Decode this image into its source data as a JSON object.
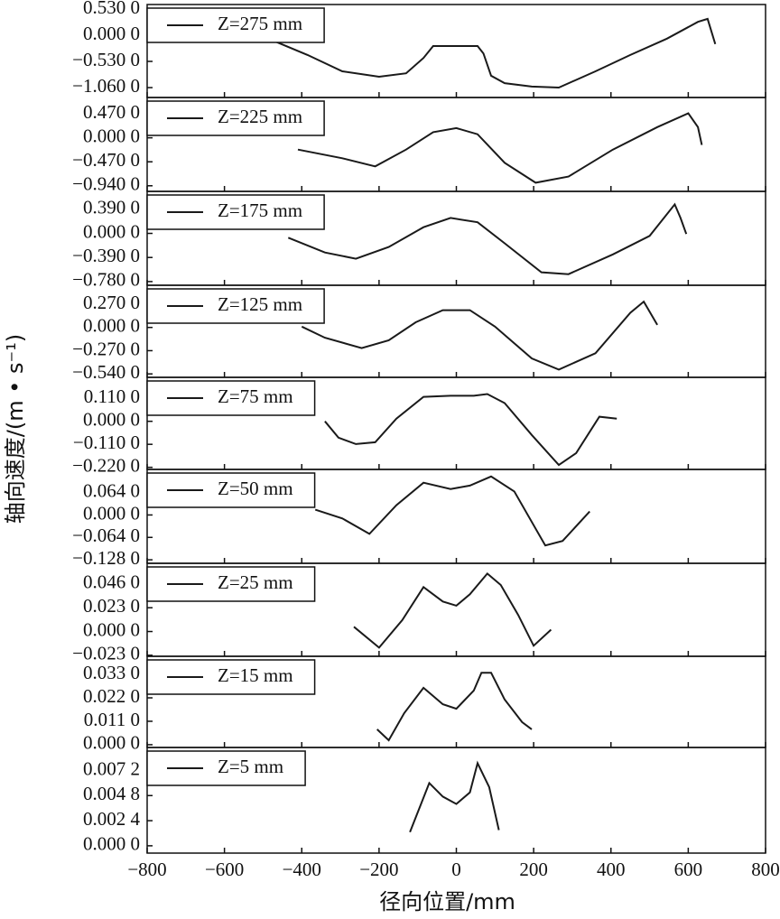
{
  "chart_data": [
    {
      "type": "line",
      "legend": "upper left",
      "x": [
        -480,
        -385,
        -295,
        -200,
        -130,
        -85,
        -60,
        55,
        70,
        90,
        125,
        195,
        265,
        360,
        450,
        545,
        625,
        650,
        670
      ],
      "series": [
        {
          "name": "Z=275 mm",
          "color": "#1a1a1a",
          "values": [
            -0.09,
            -0.4,
            -0.73,
            -0.84,
            -0.77,
            -0.46,
            -0.22,
            -0.22,
            -0.37,
            -0.82,
            -0.97,
            -1.04,
            -1.06,
            -0.73,
            -0.4,
            -0.07,
            0.27,
            0.33,
            -0.18
          ]
        }
      ],
      "xlim": [
        -800,
        800
      ],
      "xticks": [
        -800,
        -600,
        -400,
        -200,
        0,
        200,
        400,
        600,
        800
      ],
      "ylim": [
        -1.26,
        0.62
      ],
      "yticks": [
        {
          "value": -1.06,
          "label": "−1.060 0"
        },
        {
          "value": -0.53,
          "label": "−0.530 0"
        },
        {
          "value": 0,
          "label": "0.000 0"
        },
        {
          "value": 0.53,
          "label": "0.530 0"
        }
      ]
    },
    {
      "type": "line",
      "legend": "upper left",
      "x": [
        -410,
        -295,
        -210,
        -130,
        -60,
        0,
        55,
        125,
        205,
        290,
        405,
        520,
        600,
        625,
        635
      ],
      "series": [
        {
          "name": "Z=225 mm",
          "color": "#1a1a1a",
          "values": [
            -0.23,
            -0.4,
            -0.56,
            -0.23,
            0.11,
            0.19,
            0.07,
            -0.49,
            -0.88,
            -0.76,
            -0.23,
            0.21,
            0.48,
            0.21,
            -0.14
          ]
        }
      ],
      "xlim": [
        -800,
        800
      ],
      "xticks": [
        -800,
        -600,
        -400,
        -200,
        0,
        200,
        400,
        600,
        800
      ],
      "ylim": [
        -1.05,
        0.79
      ],
      "yticks": [
        {
          "value": -0.94,
          "label": "−0.940 0"
        },
        {
          "value": -0.47,
          "label": "−0.470 0"
        },
        {
          "value": 0,
          "label": "0.000 0"
        },
        {
          "value": 0.47,
          "label": "0.470 0"
        }
      ]
    },
    {
      "type": "line",
      "legend": "upper left",
      "x": [
        -435,
        -340,
        -260,
        -175,
        -85,
        -15,
        55,
        125,
        220,
        290,
        405,
        500,
        565,
        580,
        595
      ],
      "series": [
        {
          "name": "Z=175 mm",
          "color": "#1a1a1a",
          "values": [
            -0.07,
            -0.31,
            -0.41,
            -0.22,
            0.1,
            0.25,
            0.18,
            -0.16,
            -0.63,
            -0.66,
            -0.34,
            -0.04,
            0.47,
            0.25,
            -0.01
          ]
        }
      ],
      "xlim": [
        -800,
        800
      ],
      "xticks": [
        -800,
        -600,
        -400,
        -200,
        0,
        200,
        400,
        600,
        800
      ],
      "ylim": [
        -0.84,
        0.68
      ],
      "yticks": [
        {
          "value": -0.78,
          "label": "−0.780 0"
        },
        {
          "value": -0.39,
          "label": "−0.390 0"
        },
        {
          "value": 0,
          "label": "0.000 0"
        },
        {
          "value": 0.39,
          "label": "0.390 0"
        }
      ]
    },
    {
      "type": "line",
      "legend": "upper left",
      "x": [
        -400,
        -340,
        -245,
        -175,
        -105,
        -35,
        35,
        100,
        195,
        265,
        360,
        450,
        485,
        520
      ],
      "series": [
        {
          "name": "Z=125 mm",
          "color": "#1a1a1a",
          "values": [
            0.01,
            -0.12,
            -0.24,
            -0.15,
            0.06,
            0.2,
            0.2,
            0.01,
            -0.36,
            -0.49,
            -0.3,
            0.17,
            0.3,
            0.03
          ]
        }
      ],
      "xlim": [
        -800,
        800
      ],
      "xticks": [
        -800,
        -600,
        -400,
        -200,
        0,
        200,
        400,
        600,
        800
      ],
      "ylim": [
        -0.58,
        0.49
      ],
      "yticks": [
        {
          "value": -0.54,
          "label": "−0.540 0"
        },
        {
          "value": -0.27,
          "label": "−0.270 0"
        },
        {
          "value": 0,
          "label": "0.000 0"
        },
        {
          "value": 0.27,
          "label": "0.270 0"
        }
      ]
    },
    {
      "type": "line",
      "legend": "upper left",
      "x": [
        -340,
        -305,
        -260,
        -210,
        -155,
        -85,
        -15,
        45,
        80,
        125,
        195,
        265,
        310,
        370,
        415
      ],
      "series": [
        {
          "name": "Z=75 mm",
          "color": "#1a1a1a",
          "values": [
            0,
            -0.078,
            -0.109,
            -0.1,
            0.013,
            0.117,
            0.122,
            0.122,
            0.13,
            0.087,
            -0.065,
            -0.209,
            -0.152,
            0.022,
            0.013
          ]
        }
      ],
      "xlim": [
        -800,
        800
      ],
      "xticks": [
        -800,
        -600,
        -400,
        -200,
        0,
        200,
        400,
        600,
        800
      ],
      "ylim": [
        -0.23,
        0.21
      ],
      "yticks": [
        {
          "value": -0.22,
          "label": "−0.220 0"
        },
        {
          "value": -0.11,
          "label": "−0.110 0"
        },
        {
          "value": 0,
          "label": "0.000 0"
        },
        {
          "value": 0.11,
          "label": "0.110 0"
        }
      ]
    },
    {
      "type": "line",
      "legend": "upper left",
      "x": [
        -365,
        -295,
        -225,
        -155,
        -85,
        -15,
        35,
        90,
        150,
        230,
        275,
        345
      ],
      "series": [
        {
          "name": "Z=50 mm",
          "color": "#1a1a1a",
          "values": [
            0.015,
            -0.01,
            -0.054,
            0.028,
            0.092,
            0.074,
            0.084,
            0.11,
            0.067,
            -0.087,
            -0.074,
            0.01
          ]
        }
      ],
      "xlim": [
        -800,
        800
      ],
      "xticks": [
        -800,
        -600,
        -400,
        -200,
        0,
        200,
        400,
        600,
        800
      ],
      "ylim": [
        -0.138,
        0.13
      ],
      "yticks": [
        {
          "value": -0.128,
          "label": "−0.128 0"
        },
        {
          "value": -0.064,
          "label": "−0.064 0"
        },
        {
          "value": 0,
          "label": "0.000 0"
        },
        {
          "value": 0.064,
          "label": "0.064 0"
        }
      ]
    },
    {
      "type": "line",
      "legend": "upper left",
      "x": [
        -265,
        -200,
        -140,
        -85,
        -35,
        0,
        35,
        80,
        115,
        160,
        200,
        245
      ],
      "series": [
        {
          "name": "Z=25 mm",
          "color": "#1a1a1a",
          "values": [
            0.0046,
            -0.0156,
            0.011,
            0.043,
            0.029,
            0.025,
            0.036,
            0.056,
            0.045,
            0.016,
            -0.0138,
            0.0018
          ]
        }
      ],
      "xlim": [
        -800,
        800
      ],
      "xticks": [
        -800,
        -600,
        -400,
        -200,
        0,
        200,
        400,
        600,
        800
      ],
      "ylim": [
        -0.024,
        0.066
      ],
      "yticks": [
        {
          "value": -0.023,
          "label": "−0.023 0"
        },
        {
          "value": 0,
          "label": "0.000 0"
        },
        {
          "value": 0.023,
          "label": "0.023 0"
        },
        {
          "value": 0.046,
          "label": "0.046 0"
        }
      ]
    },
    {
      "type": "line",
      "legend": "upper left",
      "x": [
        -205,
        -175,
        -135,
        -85,
        -35,
        0,
        45,
        65,
        90,
        125,
        170,
        195
      ],
      "series": [
        {
          "name": "Z=15 mm",
          "color": "#1a1a1a",
          "values": [
            0.0072,
            0.0021,
            0.0148,
            0.0267,
            0.019,
            0.0169,
            0.0254,
            0.0338,
            0.0338,
            0.0212,
            0.0106,
            0.0072
          ]
        }
      ],
      "xlim": [
        -800,
        800
      ],
      "xticks": [
        -800,
        -600,
        -400,
        -200,
        0,
        200,
        400,
        600,
        800
      ],
      "ylim": [
        -0.0013,
        0.0415
      ],
      "yticks": [
        {
          "value": 0,
          "label": "0.000 0"
        },
        {
          "value": 0.011,
          "label": "0.011 0"
        },
        {
          "value": 0.022,
          "label": "0.022 0"
        },
        {
          "value": 0.033,
          "label": "0.033 0"
        }
      ]
    },
    {
      "type": "line",
      "legend": "upper left",
      "x": [
        -120,
        -70,
        -35,
        0,
        35,
        55,
        85,
        110
      ],
      "series": [
        {
          "name": "Z=5 mm",
          "color": "#1a1a1a",
          "values": [
            0.0013,
            0.006,
            0.0047,
            0.004,
            0.0051,
            0.0079,
            0.0056,
            0.0015
          ]
        }
      ],
      "xlim": [
        -800,
        800
      ],
      "xticks": [
        {
          "value": -800,
          "label": "−800"
        },
        {
          "value": -600,
          "label": "−600"
        },
        {
          "value": -400,
          "label": "−400"
        },
        {
          "value": -200,
          "label": "−200"
        },
        0,
        200,
        400,
        600,
        800
      ],
      "ylim": [
        -0.0007,
        0.0094
      ],
      "yticks": [
        {
          "value": 0,
          "label": "0.000 0"
        },
        {
          "value": 0.0024,
          "label": "0.002 4"
        },
        {
          "value": 0.0048,
          "label": "0.004 8"
        },
        {
          "value": 0.0072,
          "label": "0.007 2"
        }
      ],
      "xlabel": "径向位置/mm",
      "ylabel": "轴向速度/(m • s⁻¹)"
    }
  ]
}
